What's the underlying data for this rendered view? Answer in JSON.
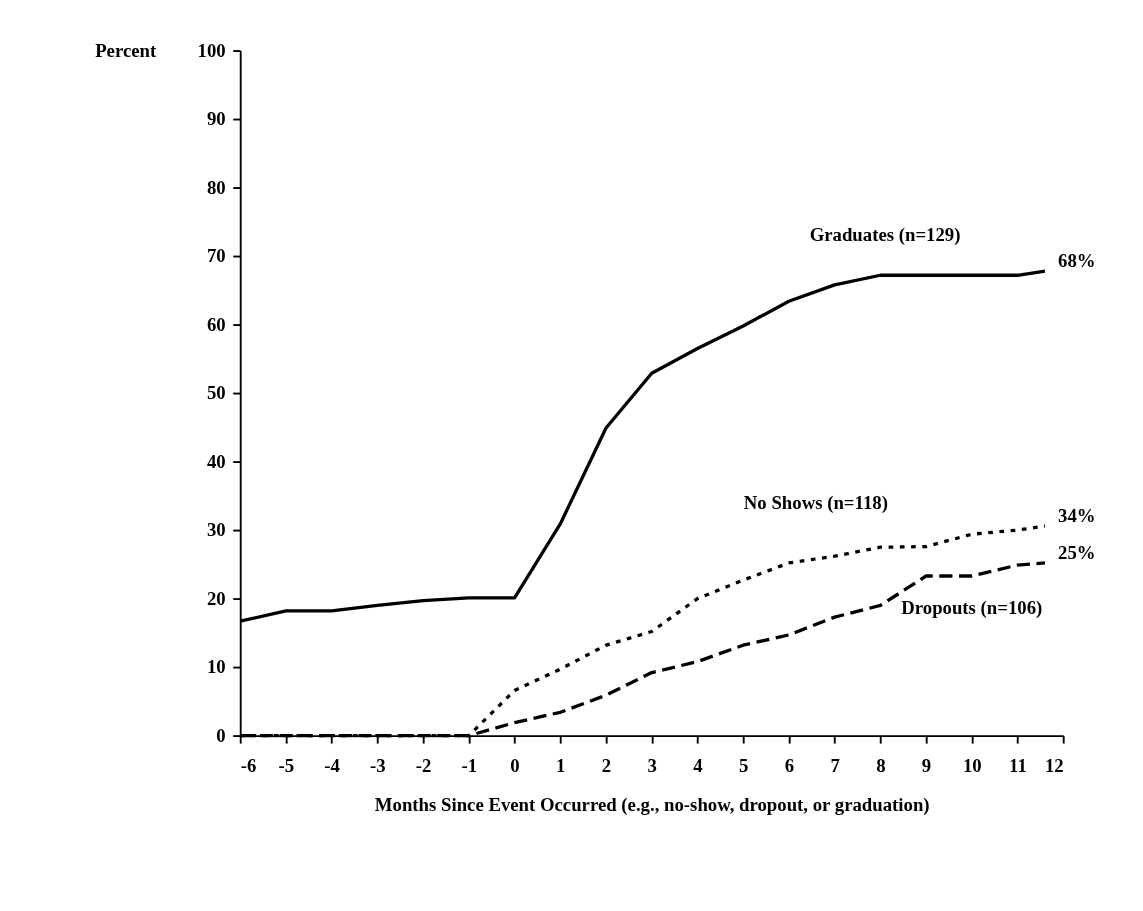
{
  "chart_data": {
    "type": "line",
    "ylabel": "Percent",
    "xlabel": "Months Since Event Occurred (e.g., no-show, dropout, or graduation)",
    "x": [
      -6,
      -5,
      -4,
      -3,
      -2,
      -1,
      0,
      1,
      2,
      3,
      4,
      5,
      6,
      7,
      8,
      9,
      10,
      11,
      11.6
    ],
    "series": [
      {
        "name": "Graduates (n=129)",
        "color": "#000000",
        "line_style": "solid",
        "values": [
          16.7,
          18.2,
          18.2,
          19,
          19.7,
          20.1,
          20.1,
          30.9,
          44.9,
          52.9,
          56.5,
          59.8,
          63.4,
          65.8,
          67.2,
          67.2,
          67.2,
          67.2,
          67.8
        ]
      },
      {
        "name": "No Shows (n=118)",
        "color": "#000000",
        "line_style": "dotted",
        "values": [
          0,
          0,
          0,
          0,
          0,
          0,
          6.6,
          9.7,
          13.2,
          15.2,
          20,
          22.7,
          25.2,
          26.2,
          27.5,
          27.6,
          29.4,
          30,
          30.6
        ]
      },
      {
        "name": "Dropouts (n=106)",
        "color": "#000000",
        "line_style": "dashed",
        "values": [
          0,
          0,
          0,
          0,
          0,
          0,
          1.9,
          3.4,
          5.9,
          9.2,
          10.8,
          13.2,
          14.7,
          17.3,
          19,
          23.3,
          23.3,
          24.9,
          25.2
        ]
      }
    ],
    "xlim": [
      -6,
      12
    ],
    "ylim": [
      0,
      100
    ],
    "xticks": [
      -6,
      -5,
      -4,
      -3,
      -2,
      -1,
      0,
      1,
      2,
      3,
      4,
      5,
      6,
      7,
      8,
      9,
      10,
      11,
      12
    ],
    "yticks": [
      0,
      10,
      20,
      30,
      40,
      50,
      60,
      70,
      80,
      90,
      100
    ],
    "grid": false,
    "legend": false,
    "marker": "none",
    "annotations": [
      "68%",
      "34%",
      "25%"
    ]
  }
}
